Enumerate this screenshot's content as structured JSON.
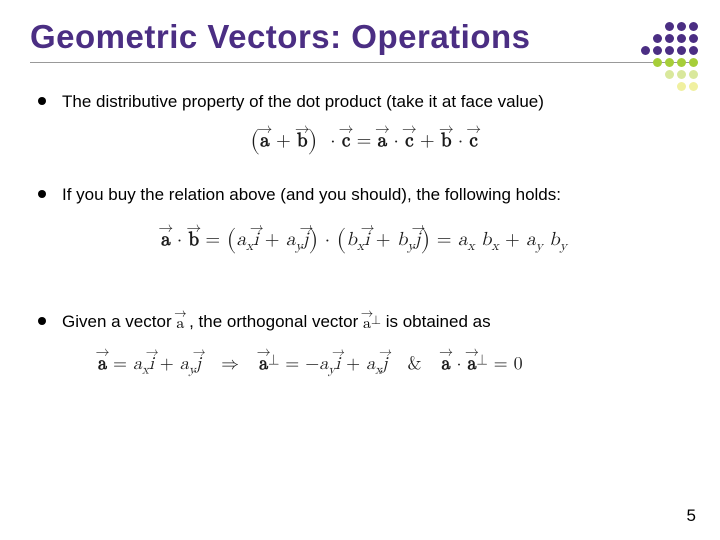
{
  "title": "Geometric Vectors: Operations",
  "title_color": "#4b2e83",
  "bullets": {
    "b1": "The distributive property of the dot product (take it at face value)",
    "b2": "If you buy the relation above (and you should), the following holds:",
    "b3_pre": "Given a vector ",
    "b3_mid": " , the orthogonal vector ",
    "b3_post": " is obtained as"
  },
  "page_number": "5",
  "decor": {
    "rows": 6,
    "cols": 5,
    "colors": {
      "c0": "#4b2e83",
      "c1": "#a6ce39",
      "c2": "#d9e89c",
      "c3": "#f0f0a0"
    },
    "layout": [
      [
        "",
        "",
        "c0",
        "c0",
        "c0"
      ],
      [
        "",
        "c0",
        "c0",
        "c0",
        "c0"
      ],
      [
        "c0",
        "c0",
        "c0",
        "c0",
        "c0"
      ],
      [
        "",
        "c1",
        "c1",
        "c1",
        "c1"
      ],
      [
        "",
        "",
        "c2",
        "c2",
        "c2"
      ],
      [
        "",
        "",
        "",
        "c3",
        "c3"
      ]
    ]
  }
}
